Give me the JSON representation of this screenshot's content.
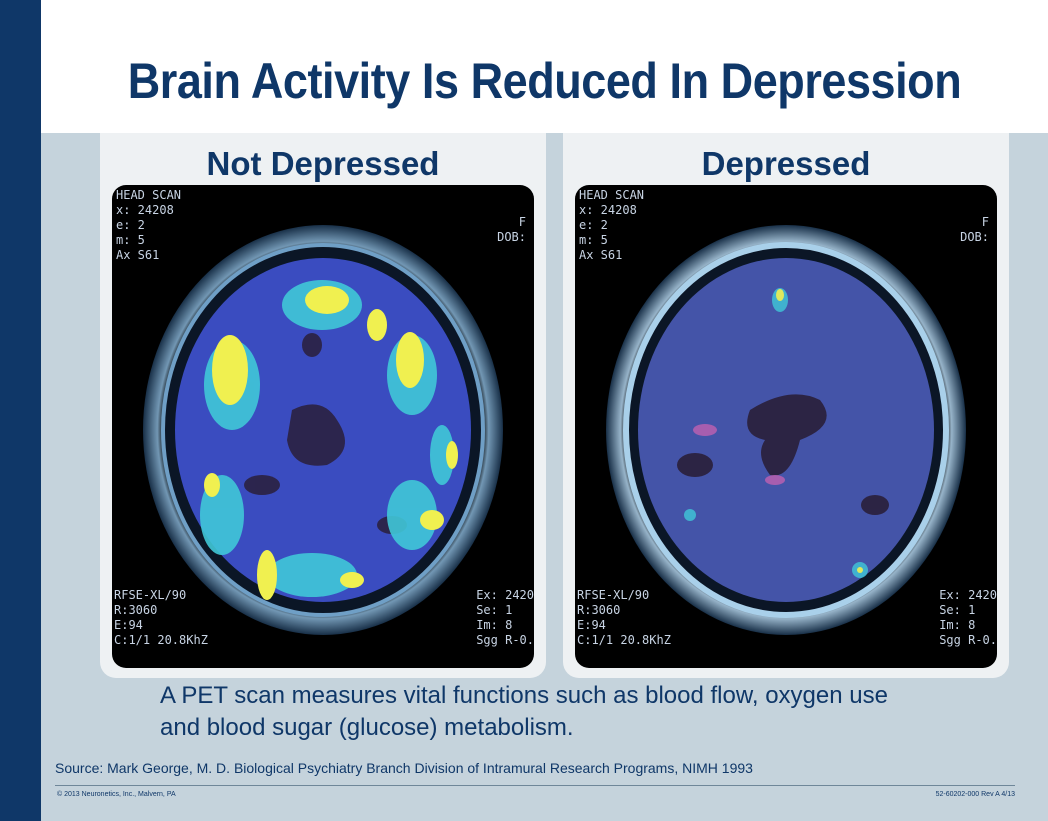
{
  "slide": {
    "title": "Brain Activity Is Reduced In Depression",
    "panels": [
      {
        "label": "Not Depressed",
        "scan_text": {
          "top_left": "HEAD SCAN\nx: 24208\ne: 2\nm: 5\nAx S61",
          "top_right": "F\nDOB:",
          "bottom_left": "RFSE-XL/90\nR:3060\nE:94\nC:1/1 20.8KhZ",
          "bottom_right": "Ex: 2420\nSe: 1\nIm: 8\nSgg R-0."
        }
      },
      {
        "label": "Depressed",
        "scan_text": {
          "top_left": "HEAD SCAN\nx: 24208\ne: 2\nm: 5\nAx S61",
          "top_right": "F\nDOB:",
          "bottom_left": "RFSE-XL/90\nR:3060\nE:94\nC:1/1 20.8KhZ",
          "bottom_right": "Ex: 2420\nSe: 1\nIm: 8\nSgg R-0."
        }
      }
    ],
    "caption": "A PET scan measures vital functions such as blood flow, oxygen use and blood sugar (glucose) metabolism.",
    "source": "Source: Mark George, M. D. Biological Psychiatry Branch Division of Intramural Research Programs, NIMH 1993",
    "copyright": "© 2013 Neuronetics, Inc., Malvern, PA",
    "doc_number": "52-60202-000 Rev A  4/13"
  },
  "colors": {
    "navy": "#0f3768",
    "background": "#c5d3dc",
    "scan_blue": "#3d4fbf",
    "active_yellow": "#f0f050",
    "active_cyan": "#40c8d8",
    "low_dark": "#2a1f3a"
  }
}
